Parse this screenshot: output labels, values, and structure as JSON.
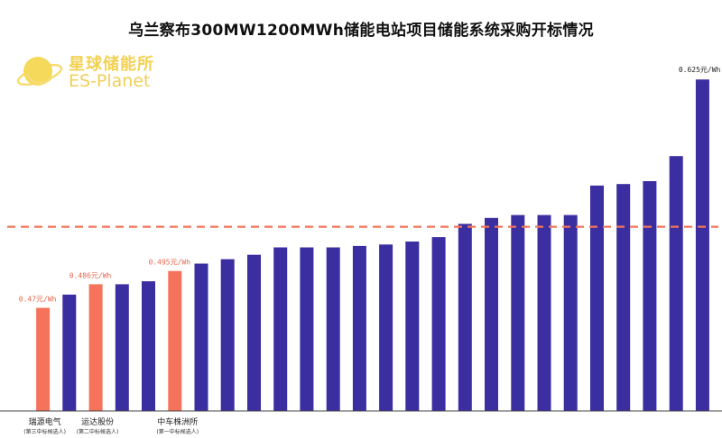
{
  "chart_data": {
    "type": "bar",
    "title": "乌兰察布300MW1200MWh储能电站项目储能系统采购开标情况",
    "logo": {
      "text_cn": "星球储能所",
      "text_en": "ES-Planet"
    },
    "values": [
      0.47,
      0.479,
      0.486,
      0.486,
      0.488,
      0.495,
      0.5,
      0.503,
      0.506,
      0.511,
      0.511,
      0.511,
      0.512,
      0.513,
      0.515,
      0.518,
      0.527,
      0.531,
      0.533,
      0.533,
      0.533,
      0.553,
      0.554,
      0.556,
      0.573,
      0.625
    ],
    "highlight_indices": [
      0,
      2,
      5
    ],
    "data_labels": [
      {
        "index": 0,
        "text": "0.47元/Wh"
      },
      {
        "index": 2,
        "text": "0.486元/Wh"
      },
      {
        "index": 5,
        "text": "0.495元/Wh"
      },
      {
        "index": 25,
        "text": "0.625元/Wh"
      }
    ],
    "company_labels": [
      {
        "index": 0,
        "name": "瑞源电气",
        "note": "(第三中标候选人)"
      },
      {
        "index": 2,
        "name": "运达股份",
        "note": "(第二中标候选人)"
      },
      {
        "index": 5,
        "name": "中车株洲所",
        "note": "(第一中标候选人)"
      }
    ],
    "reference_line": 0.525,
    "ylim": [
      0.4,
      0.63
    ],
    "grid": false,
    "colors": {
      "bar": "#3a2ea1",
      "highlight": "#f4735a",
      "reference_line": "#f27559",
      "label": "#e8674f",
      "axis": "#444444"
    }
  }
}
